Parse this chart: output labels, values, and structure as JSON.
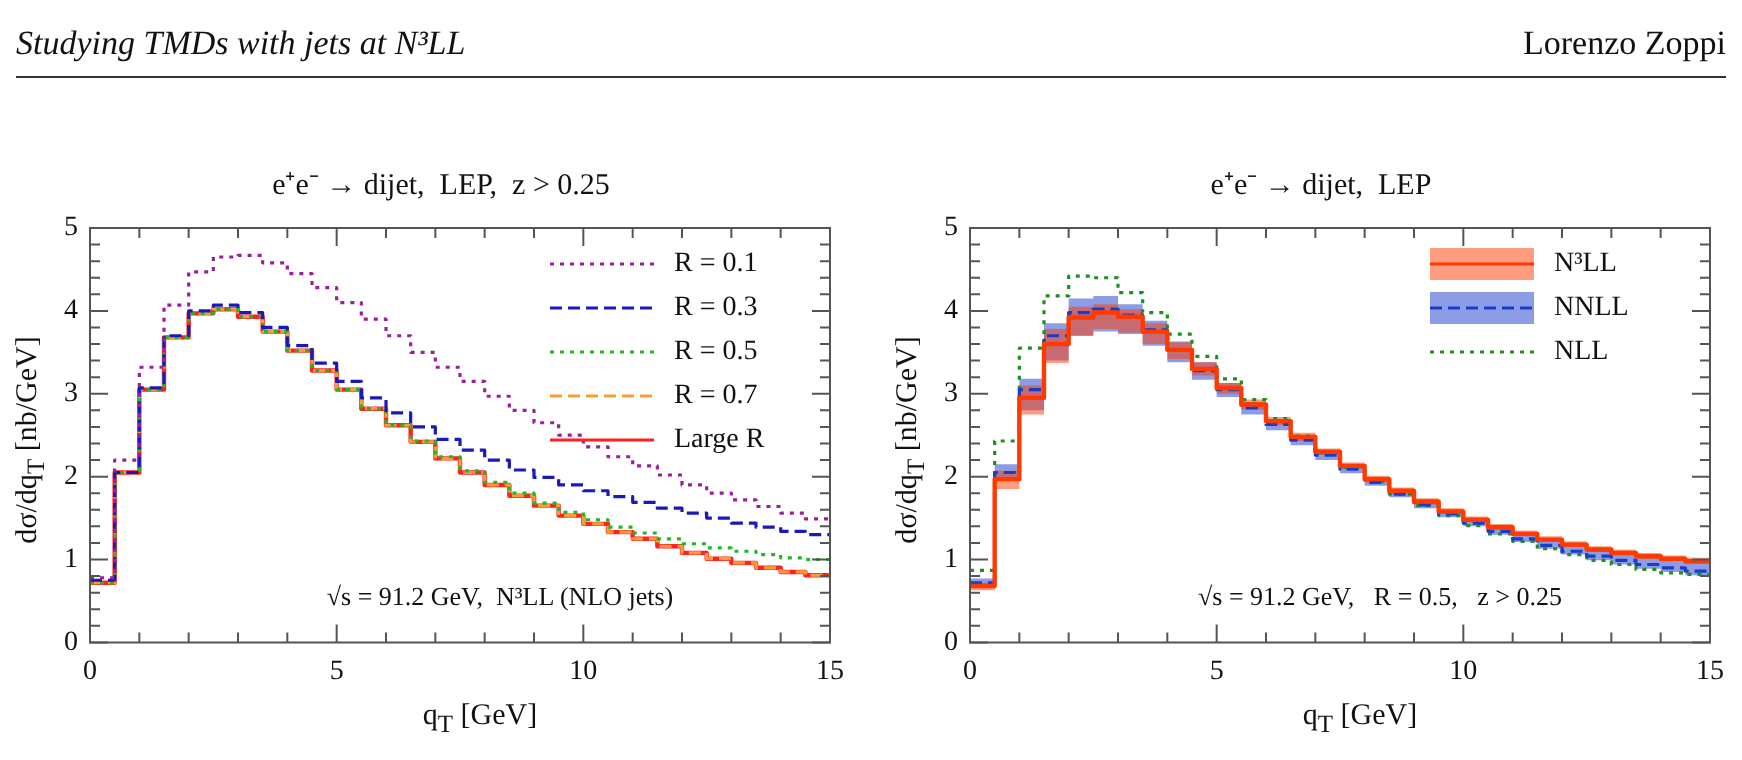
{
  "chart_data": [
    {
      "type": "other",
      "title": "Studying TMDs with jets at N³LL",
      "annotations": [
        "Lorenzo Zoppi"
      ]
    },
    {
      "type": "step",
      "title": "e⁺e⁻ → dijet,  LEP,  z > 0.25",
      "xlabel": "q$_{T}$ [GeV]",
      "ylabel": "dσ/dq$_{T}$ [nb/GeV]",
      "legend": "top right",
      "annotations": [
        "√s = 91.2 GeV,  N³LL (NLO jets)"
      ],
      "x": [
        0,
        0.5,
        1,
        1.5,
        2,
        2.5,
        3,
        3.5,
        4,
        4.5,
        5,
        5.5,
        6,
        6.5,
        7,
        7.5,
        8,
        8.5,
        9,
        9.5,
        10,
        10.5,
        11,
        11.5,
        12,
        12.5,
        13,
        13.5,
        14,
        14.5,
        15
      ],
      "xlim": [
        0,
        15
      ],
      "xticks": [
        0,
        {
          "value": 1,
          "label": null
        },
        {
          "value": 2,
          "label": null
        },
        {
          "value": 3,
          "label": null
        },
        {
          "value": 4,
          "label": null
        },
        5,
        {
          "value": 6,
          "label": null
        },
        {
          "value": 7,
          "label": null
        },
        {
          "value": 8,
          "label": null
        },
        {
          "value": 9,
          "label": null
        },
        10,
        {
          "value": 11,
          "label": null
        },
        {
          "value": 12,
          "label": null
        },
        {
          "value": 13,
          "label": null
        },
        {
          "value": 14,
          "label": null
        },
        15
      ],
      "ylim": [
        0,
        5
      ],
      "yticks": [
        0,
        {
          "value": 0.2,
          "label": null
        },
        {
          "value": 0.4,
          "label": null
        },
        {
          "value": 0.6,
          "label": null
        },
        {
          "value": 0.8,
          "label": null
        },
        1,
        {
          "value": 1.2,
          "label": null
        },
        {
          "value": 1.4,
          "label": null
        },
        {
          "value": 1.6,
          "label": null
        },
        {
          "value": 1.8,
          "label": null
        },
        2,
        {
          "value": 2.2,
          "label": null
        },
        {
          "value": 2.4,
          "label": null
        },
        {
          "value": 2.6,
          "label": null
        },
        {
          "value": 2.8,
          "label": null
        },
        3,
        {
          "value": 3.2,
          "label": null
        },
        {
          "value": 3.4,
          "label": null
        },
        {
          "value": 3.6,
          "label": null
        },
        {
          "value": 3.8,
          "label": null
        },
        4,
        {
          "value": 4.2,
          "label": null
        },
        {
          "value": 4.4,
          "label": null
        },
        {
          "value": 4.6,
          "label": null
        },
        {
          "value": 4.8,
          "label": null
        },
        5
      ],
      "series": [
        {
          "name": "R = 0.1",
          "color": "#9a1f9a",
          "line_style": "dotted",
          "values": [
            0.78,
            2.2,
            3.32,
            4.07,
            4.47,
            4.65,
            4.67,
            4.58,
            4.45,
            4.28,
            4.1,
            3.9,
            3.7,
            3.5,
            3.32,
            3.15,
            2.97,
            2.8,
            2.65,
            2.5,
            2.36,
            2.24,
            2.13,
            2.02,
            1.9,
            1.8,
            1.72,
            1.64,
            1.56,
            1.49,
            1.49
          ]
        },
        {
          "name": "R = 0.3",
          "color": "#1a1ab8",
          "line_style": "dashed",
          "values": [
            0.75,
            2.05,
            3.07,
            3.7,
            4.0,
            4.07,
            3.98,
            3.8,
            3.58,
            3.37,
            3.15,
            2.95,
            2.77,
            2.6,
            2.45,
            2.32,
            2.2,
            2.08,
            1.99,
            1.9,
            1.83,
            1.76,
            1.69,
            1.62,
            1.56,
            1.5,
            1.44,
            1.39,
            1.34,
            1.3,
            1.3
          ]
        },
        {
          "name": "R = 0.5",
          "color": "#22b822",
          "line_style": "dotted",
          "values": [
            0.72,
            2.05,
            3.05,
            3.68,
            3.97,
            4.02,
            3.93,
            3.75,
            3.52,
            3.28,
            3.05,
            2.82,
            2.62,
            2.43,
            2.24,
            2.07,
            1.93,
            1.8,
            1.68,
            1.57,
            1.48,
            1.39,
            1.32,
            1.25,
            1.19,
            1.14,
            1.1,
            1.06,
            1.02,
            1.0,
            1.0
          ]
        },
        {
          "name": "R = 0.7",
          "color": "#ff9a3c",
          "line_style": "dashed",
          "values": [
            0.72,
            2.05,
            3.05,
            3.68,
            3.97,
            4.02,
            3.93,
            3.75,
            3.52,
            3.28,
            3.05,
            2.82,
            2.62,
            2.42,
            2.22,
            2.05,
            1.9,
            1.77,
            1.65,
            1.53,
            1.43,
            1.33,
            1.25,
            1.16,
            1.08,
            1.01,
            0.96,
            0.9,
            0.85,
            0.81,
            0.81
          ]
        },
        {
          "name": "Large R",
          "color": "#ff2020",
          "line_style": "solid",
          "values": [
            0.72,
            2.05,
            3.05,
            3.68,
            3.97,
            4.02,
            3.93,
            3.75,
            3.52,
            3.28,
            3.05,
            2.82,
            2.62,
            2.42,
            2.22,
            2.05,
            1.9,
            1.77,
            1.65,
            1.53,
            1.43,
            1.33,
            1.25,
            1.16,
            1.08,
            1.01,
            0.96,
            0.9,
            0.85,
            0.81,
            0.81
          ]
        }
      ]
    },
    {
      "type": "step",
      "title": "e⁺e⁻ → dijet,  LEP",
      "xlabel": "q$_{T}$ [GeV]",
      "ylabel": "dσ/dq$_{T}$ [nb/GeV]",
      "legend": "top right",
      "annotations": [
        "√s = 91.2 GeV,   R = 0.5,   z > 0.25"
      ],
      "x": [
        0,
        0.5,
        1,
        1.5,
        2,
        2.5,
        3,
        3.5,
        4,
        4.5,
        5,
        5.5,
        6,
        6.5,
        7,
        7.5,
        8,
        8.5,
        9,
        9.5,
        10,
        10.5,
        11,
        11.5,
        12,
        12.5,
        13,
        13.5,
        14,
        14.5,
        15
      ],
      "xlim": [
        0,
        15
      ],
      "xticks": [
        0,
        {
          "value": 1,
          "label": null
        },
        {
          "value": 2,
          "label": null
        },
        {
          "value": 3,
          "label": null
        },
        {
          "value": 4,
          "label": null
        },
        5,
        {
          "value": 6,
          "label": null
        },
        {
          "value": 7,
          "label": null
        },
        {
          "value": 8,
          "label": null
        },
        {
          "value": 9,
          "label": null
        },
        10,
        {
          "value": 11,
          "label": null
        },
        {
          "value": 12,
          "label": null
        },
        {
          "value": 13,
          "label": null
        },
        {
          "value": 14,
          "label": null
        },
        15
      ],
      "ylim": [
        0,
        5
      ],
      "yticks": [
        0,
        {
          "value": 0.2,
          "label": null
        },
        {
          "value": 0.4,
          "label": null
        },
        {
          "value": 0.6,
          "label": null
        },
        {
          "value": 0.8,
          "label": null
        },
        1,
        {
          "value": 1.2,
          "label": null
        },
        {
          "value": 1.4,
          "label": null
        },
        {
          "value": 1.6,
          "label": null
        },
        {
          "value": 1.8,
          "label": null
        },
        2,
        {
          "value": 2.2,
          "label": null
        },
        {
          "value": 2.4,
          "label": null
        },
        {
          "value": 2.6,
          "label": null
        },
        {
          "value": 2.8,
          "label": null
        },
        3,
        {
          "value": 3.2,
          "label": null
        },
        {
          "value": 3.4,
          "label": null
        },
        {
          "value": 3.6,
          "label": null
        },
        {
          "value": 3.8,
          "label": null
        },
        4,
        {
          "value": 4.2,
          "label": null
        },
        {
          "value": 4.4,
          "label": null
        },
        {
          "value": 4.6,
          "label": null
        },
        {
          "value": 4.8,
          "label": null
        },
        5
      ],
      "series": [
        {
          "name": "N³LL",
          "color": "#ff3a00",
          "line_style": "solid",
          "values": [
            0.68,
            1.97,
            2.95,
            3.6,
            3.92,
            3.98,
            3.93,
            3.75,
            3.53,
            3.3,
            3.07,
            2.87,
            2.67,
            2.48,
            2.3,
            2.13,
            1.97,
            1.83,
            1.7,
            1.58,
            1.48,
            1.39,
            1.31,
            1.24,
            1.18,
            1.12,
            1.08,
            1.04,
            1.01,
            0.98,
            0.98
          ],
          "lower": [
            0.63,
            1.85,
            2.75,
            3.37,
            3.7,
            3.78,
            3.74,
            3.6,
            3.42,
            3.22,
            3.0,
            2.81,
            2.62,
            2.43,
            2.26,
            2.09,
            1.93,
            1.79,
            1.66,
            1.55,
            1.45,
            1.36,
            1.28,
            1.21,
            1.15,
            1.09,
            1.05,
            1.01,
            0.98,
            0.95,
            0.95
          ],
          "upper": [
            0.72,
            2.07,
            3.1,
            3.78,
            4.05,
            4.08,
            4.02,
            3.85,
            3.62,
            3.38,
            3.13,
            2.93,
            2.72,
            2.53,
            2.34,
            2.17,
            2.01,
            1.87,
            1.74,
            1.62,
            1.52,
            1.43,
            1.35,
            1.28,
            1.22,
            1.16,
            1.12,
            1.08,
            1.05,
            1.02,
            1.02
          ]
        },
        {
          "name": "NNLL",
          "color": "#1a3ccc",
          "line_style": "dashed",
          "values": [
            0.72,
            2.05,
            3.05,
            3.7,
            3.98,
            4.02,
            3.95,
            3.77,
            3.53,
            3.28,
            3.05,
            2.83,
            2.63,
            2.44,
            2.26,
            2.09,
            1.93,
            1.79,
            1.66,
            1.55,
            1.44,
            1.34,
            1.25,
            1.17,
            1.1,
            1.04,
            0.99,
            0.94,
            0.9,
            0.86,
            0.86
          ],
          "lower": [
            0.67,
            1.95,
            2.8,
            3.4,
            3.7,
            3.75,
            3.72,
            3.58,
            3.38,
            3.17,
            2.96,
            2.75,
            2.56,
            2.38,
            2.2,
            2.04,
            1.89,
            1.75,
            1.62,
            1.51,
            1.4,
            1.3,
            1.21,
            1.13,
            1.06,
            0.99,
            0.94,
            0.89,
            0.85,
            0.81,
            0.81
          ],
          "upper": [
            0.77,
            2.15,
            3.18,
            3.85,
            4.15,
            4.18,
            4.08,
            3.88,
            3.63,
            3.38,
            3.13,
            2.9,
            2.69,
            2.49,
            2.31,
            2.14,
            1.98,
            1.84,
            1.71,
            1.6,
            1.5,
            1.41,
            1.32,
            1.26,
            1.2,
            1.14,
            1.1,
            1.06,
            1.02,
            0.99,
            0.99
          ]
        },
        {
          "name": "NLL",
          "color": "#1f8f1f",
          "line_style": "dotted",
          "values": [
            0.87,
            2.43,
            3.55,
            4.18,
            4.42,
            4.4,
            4.22,
            3.98,
            3.72,
            3.45,
            3.18,
            2.93,
            2.7,
            2.49,
            2.29,
            2.11,
            1.94,
            1.79,
            1.65,
            1.53,
            1.41,
            1.31,
            1.22,
            1.13,
            1.06,
            0.99,
            0.94,
            0.88,
            0.84,
            0.82,
            0.82
          ]
        }
      ]
    }
  ]
}
